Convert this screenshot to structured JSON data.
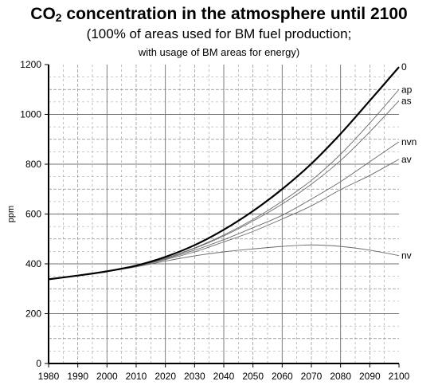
{
  "header": {
    "title_main": "CO",
    "title_sub": "2",
    "title_rest": " concentration in the atmosphere until 2100",
    "subtitle_line1": "(100% of areas used for BM fuel production;",
    "subtitle_line2": "with usage of BM areas for energy)"
  },
  "chart_data": {
    "type": "line",
    "title": "CO2 concentration in the atmosphere until 2100",
    "subtitle": "(100% of areas used for BM fuel production; with usage of BM areas for energy)",
    "xlabel": "",
    "ylabel": "ppm",
    "xlim": [
      1980,
      2100
    ],
    "ylim": [
      0,
      1200
    ],
    "x_ticks": [
      1980,
      1990,
      2000,
      2010,
      2020,
      2030,
      2040,
      2050,
      2060,
      2070,
      2080,
      2090,
      2100
    ],
    "y_ticks": [
      0,
      200,
      400,
      600,
      800,
      1000,
      1200
    ],
    "grid": true,
    "legend": "labels at line ends (right)",
    "x": [
      1980,
      1990,
      2000,
      2010,
      2020,
      2030,
      2040,
      2050,
      2060,
      2070,
      2080,
      2090,
      2100
    ],
    "series": [
      {
        "name": "0",
        "emphasis": true,
        "values": [
          338,
          353,
          370,
          393,
          428,
          475,
          537,
          612,
          700,
          802,
          922,
          1055,
          1190
        ]
      },
      {
        "name": "ap",
        "emphasis": false,
        "values": [
          338,
          353,
          370,
          391,
          423,
          464,
          516,
          578,
          651,
          735,
          840,
          965,
          1100
        ]
      },
      {
        "name": "as",
        "emphasis": false,
        "values": [
          338,
          353,
          370,
          391,
          422,
          462,
          512,
          572,
          640,
          720,
          815,
          930,
          1055
        ]
      },
      {
        "name": "nvn",
        "emphasis": false,
        "values": [
          338,
          353,
          370,
          391,
          420,
          455,
          497,
          545,
          595,
          660,
          730,
          810,
          890
        ]
      },
      {
        "name": "av",
        "emphasis": false,
        "values": [
          338,
          353,
          370,
          390,
          417,
          448,
          488,
          530,
          580,
          633,
          698,
          755,
          820
        ]
      },
      {
        "name": "nv",
        "emphasis": false,
        "values": [
          338,
          353,
          370,
          388,
          411,
          432,
          448,
          460,
          470,
          476,
          470,
          455,
          433
        ]
      }
    ]
  }
}
